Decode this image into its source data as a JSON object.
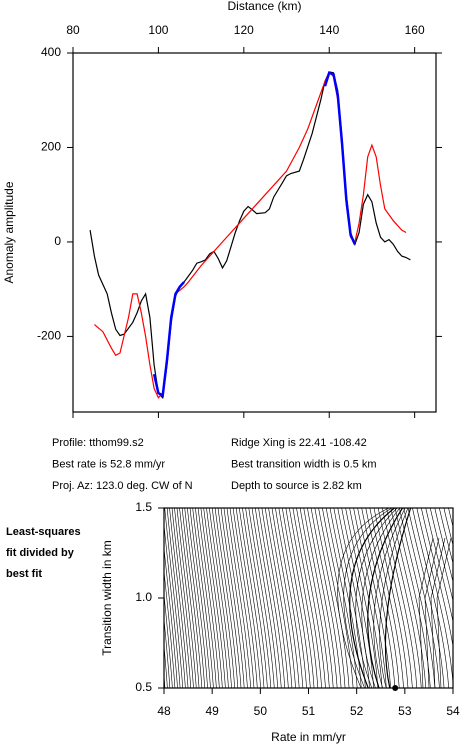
{
  "chart_data": [
    {
      "type": "line",
      "x_label": "Distance (km)",
      "y_label": "Anomaly amplitude",
      "xlim": [
        80,
        165
      ],
      "xticks": [
        80,
        100,
        120,
        140,
        160
      ],
      "ylim": [
        -360,
        400
      ],
      "yticks": [
        400,
        200,
        0,
        -200
      ],
      "series": [
        {
          "color": "#000000",
          "x": [
            84,
            85,
            86,
            88,
            89,
            90,
            91,
            92,
            94,
            95,
            96,
            97,
            98,
            99,
            100,
            101,
            102,
            103,
            104,
            105,
            106,
            108,
            109,
            110,
            111,
            112,
            113,
            114,
            115,
            116,
            117,
            118,
            119,
            120,
            121,
            122,
            123,
            125,
            126,
            127,
            128,
            129,
            130,
            131,
            133,
            134,
            136,
            138,
            139,
            140,
            141,
            142,
            143,
            144,
            145,
            146,
            147,
            148,
            149,
            150,
            151,
            152,
            153,
            154,
            155,
            156,
            157,
            158,
            159
          ],
          "values": [
            25,
            -30,
            -70,
            -110,
            -150,
            -185,
            -198,
            -195,
            -170,
            -150,
            -125,
            -110,
            -160,
            -260,
            -320,
            -330,
            -260,
            -170,
            -115,
            -95,
            -85,
            -60,
            -45,
            -42,
            -38,
            -25,
            -20,
            -35,
            -55,
            -40,
            -10,
            20,
            45,
            65,
            75,
            68,
            60,
            62,
            70,
            95,
            110,
            125,
            140,
            145,
            150,
            175,
            230,
            300,
            340,
            360,
            358,
            320,
            220,
            100,
            20,
            -5,
            20,
            80,
            100,
            85,
            40,
            10,
            0,
            5,
            -5,
            -20,
            -30,
            -33,
            -38
          ]
        },
        {
          "color": "#ff0000",
          "x": [
            85,
            87,
            89,
            90,
            91,
            93,
            94,
            95,
            96,
            97,
            98,
            99,
            100,
            101,
            102,
            103,
            104,
            106,
            107,
            110,
            115,
            120,
            125,
            130,
            133,
            135,
            137,
            139,
            140,
            141,
            142,
            143,
            144,
            145,
            146,
            147,
            148,
            149,
            150,
            151,
            152,
            153,
            155,
            157,
            158
          ],
          "values": [
            -175,
            -190,
            -225,
            -240,
            -235,
            -160,
            -110,
            -110,
            -150,
            -200,
            -260,
            -310,
            -330,
            -320,
            -250,
            -160,
            -110,
            -95,
            -85,
            -50,
            0,
            50,
            100,
            150,
            200,
            240,
            290,
            340,
            360,
            350,
            300,
            200,
            80,
            10,
            0,
            40,
            100,
            180,
            205,
            180,
            120,
            70,
            45,
            25,
            20
          ]
        },
        {
          "color": "#0000ff",
          "x": [
            99,
            100,
            101,
            102,
            103,
            104,
            105,
            106,
            null,
            139,
            140,
            141,
            142,
            143,
            144,
            145,
            146
          ],
          "values": [
            -280,
            -320,
            -325,
            -250,
            -160,
            -110,
            -95,
            -85,
            null,
            330,
            358,
            355,
            310,
            210,
            90,
            15,
            -5
          ]
        }
      ]
    },
    {
      "type": "contour",
      "x_label": "Rate in mm/yr",
      "y_label": "Transition width in km",
      "annotation_lines": [
        "Least-squares",
        "fit divided by",
        "best fit"
      ],
      "xlim": [
        48,
        54
      ],
      "xticks": [
        48,
        49,
        50,
        51,
        52,
        53,
        54
      ],
      "ylim": [
        0.5,
        1.5
      ],
      "yticks": [
        0.5,
        {
          "value": 1,
          "label": "1.0"
        },
        1.5
      ],
      "points": {
        "x": [
          52.8
        ],
        "y": [
          0.5
        ],
        "color": "#000000"
      }
    }
  ],
  "profile_info": [
    "Profile: tthom99.s2",
    "Ridge Xing is 22.41 -108.42",
    "Best rate is 52.8 mm/yr",
    "Best transition width is 0.5 km",
    "Proj. Az: 123.0 deg. CW of N",
    "Depth to source is   2.82 km"
  ]
}
